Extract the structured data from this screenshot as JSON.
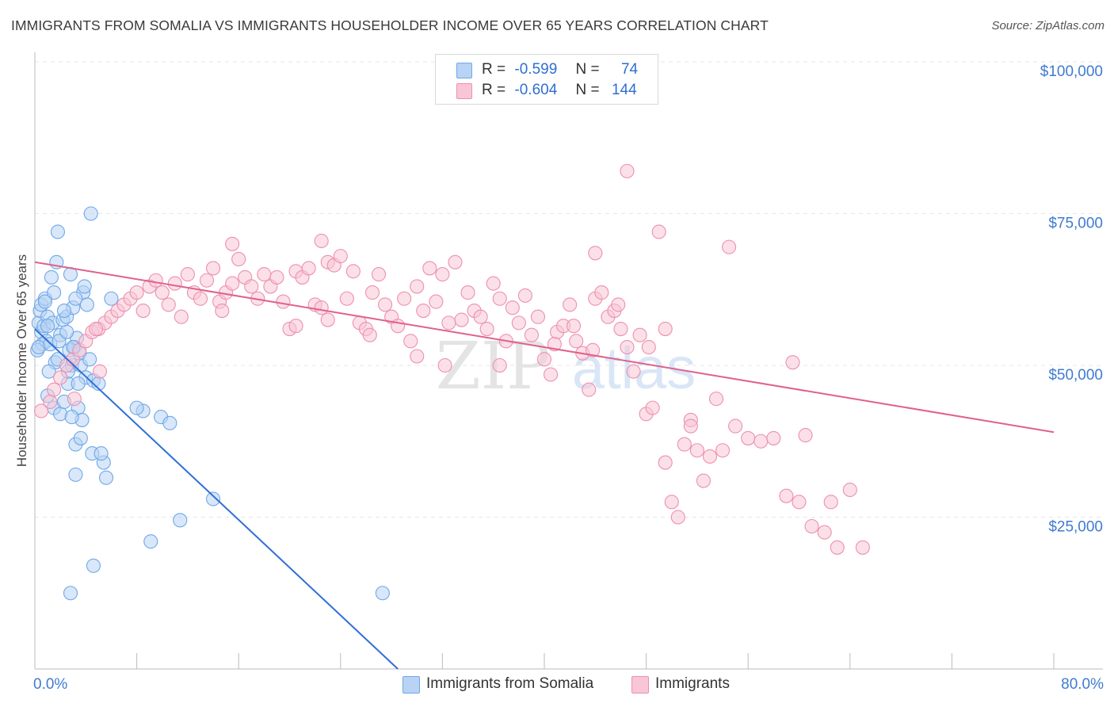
{
  "title": "IMMIGRANTS FROM SOMALIA VS IMMIGRANTS HOUSEHOLDER INCOME OVER 65 YEARS CORRELATION CHART",
  "source": "Source: ZipAtlas.com",
  "watermark": {
    "zip": "ZIP",
    "atlas": "atlas"
  },
  "legend": {
    "r_label": "R =",
    "n_label": "N =",
    "rows": [
      {
        "r": "-0.599",
        "n": "74"
      },
      {
        "r": "-0.604",
        "n": "144"
      }
    ]
  },
  "chart_data": {
    "type": "scatter",
    "xlabel": "",
    "ylabel": "Householder Income Over 65 years",
    "xlim": [
      0,
      80
    ],
    "ylim": [
      0,
      100000
    ],
    "x_tick_labels": {
      "left": "0.0%",
      "right": "80.0%"
    },
    "y_ticks": [
      {
        "value": 25000,
        "label": "$25,000"
      },
      {
        "value": 50000,
        "label": "$50,000"
      },
      {
        "value": 75000,
        "label": "$75,000"
      },
      {
        "value": 100000,
        "label": "$100,000"
      }
    ],
    "grid": true,
    "legend_position": "top-center",
    "series": [
      {
        "name": "Immigrants from Somalia",
        "color": "#6fa8e8",
        "fill": "#b8d3f4",
        "line_color": "#2f6fd6",
        "trend": {
          "x0": 0,
          "y0": 56000,
          "x1": 28.5,
          "y1": 0
        },
        "points": [
          [
            0.3,
            57000
          ],
          [
            0.5,
            55500
          ],
          [
            0.4,
            59000
          ],
          [
            0.6,
            53500
          ],
          [
            0.2,
            52500
          ],
          [
            0.7,
            56500
          ],
          [
            0.9,
            54000
          ],
          [
            0.5,
            60000
          ],
          [
            0.8,
            61000
          ],
          [
            0.3,
            53000
          ],
          [
            1.2,
            53500
          ],
          [
            1.0,
            58000
          ],
          [
            1.4,
            57000
          ],
          [
            1.5,
            62000
          ],
          [
            1.6,
            50500
          ],
          [
            1.8,
            51000
          ],
          [
            2.0,
            55000
          ],
          [
            1.1,
            49000
          ],
          [
            2.2,
            57500
          ],
          [
            2.5,
            58000
          ],
          [
            2.7,
            52500
          ],
          [
            2.9,
            50000
          ],
          [
            3.1,
            53000
          ],
          [
            3.3,
            54500
          ],
          [
            3.6,
            50000
          ],
          [
            3.8,
            62000
          ],
          [
            4.0,
            48000
          ],
          [
            2.6,
            47000
          ],
          [
            3.0,
            59500
          ],
          [
            3.5,
            52000
          ],
          [
            4.3,
            51000
          ],
          [
            4.6,
            47500
          ],
          [
            1.3,
            64500
          ],
          [
            1.7,
            67000
          ],
          [
            1.8,
            72000
          ],
          [
            4.4,
            75000
          ],
          [
            2.8,
            65000
          ],
          [
            3.9,
            63000
          ],
          [
            3.2,
            61000
          ],
          [
            4.1,
            60000
          ],
          [
            1.0,
            45000
          ],
          [
            1.5,
            43000
          ],
          [
            2.0,
            42000
          ],
          [
            2.3,
            44000
          ],
          [
            2.6,
            49000
          ],
          [
            3.4,
            43000
          ],
          [
            3.7,
            41000
          ],
          [
            2.9,
            41500
          ],
          [
            3.2,
            37000
          ],
          [
            3.6,
            38000
          ],
          [
            4.5,
            35500
          ],
          [
            5.4,
            34000
          ],
          [
            5.6,
            31500
          ],
          [
            5.2,
            35500
          ],
          [
            5.0,
            47000
          ],
          [
            6.0,
            61000
          ],
          [
            8.5,
            42500
          ],
          [
            9.9,
            41500
          ],
          [
            10.6,
            40500
          ],
          [
            3.2,
            32000
          ],
          [
            8.0,
            43000
          ],
          [
            11.4,
            24500
          ],
          [
            14.0,
            28000
          ],
          [
            9.1,
            21000
          ],
          [
            4.6,
            17000
          ],
          [
            2.8,
            12500
          ],
          [
            27.3,
            12500
          ],
          [
            1.0,
            56500
          ],
          [
            2.3,
            59000
          ],
          [
            3.0,
            53000
          ],
          [
            1.9,
            54000
          ],
          [
            0.8,
            60500
          ],
          [
            3.4,
            47000
          ],
          [
            2.5,
            55500
          ]
        ]
      },
      {
        "name": "Immigrants",
        "color": "#ee8fb0",
        "fill": "#f8c6d6",
        "line_color": "#e0608c",
        "trend": {
          "x0": 0,
          "y0": 67000,
          "x1": 80,
          "y1": 39000
        },
        "points": [
          [
            0.5,
            42500
          ],
          [
            1.2,
            44000
          ],
          [
            1.5,
            46000
          ],
          [
            2.0,
            48000
          ],
          [
            2.5,
            50000
          ],
          [
            3.0,
            51000
          ],
          [
            3.5,
            52500
          ],
          [
            4.0,
            54000
          ],
          [
            4.5,
            55500
          ],
          [
            5.0,
            56000
          ],
          [
            5.5,
            57000
          ],
          [
            6.0,
            58000
          ],
          [
            6.5,
            59000
          ],
          [
            7.0,
            60000
          ],
          [
            7.5,
            61000
          ],
          [
            8.0,
            62000
          ],
          [
            8.5,
            59000
          ],
          [
            9.0,
            63000
          ],
          [
            9.5,
            64000
          ],
          [
            10.0,
            62000
          ],
          [
            10.5,
            60000
          ],
          [
            11.0,
            63500
          ],
          [
            11.5,
            58000
          ],
          [
            12.0,
            65000
          ],
          [
            12.5,
            62000
          ],
          [
            13.0,
            61000
          ],
          [
            13.5,
            64000
          ],
          [
            14.0,
            66000
          ],
          [
            14.5,
            60500
          ],
          [
            15.0,
            62000
          ],
          [
            15.5,
            70000
          ],
          [
            16.0,
            67500
          ],
          [
            16.5,
            64500
          ],
          [
            17.0,
            63000
          ],
          [
            17.5,
            61000
          ],
          [
            18.0,
            65000
          ],
          [
            18.5,
            63000
          ],
          [
            19.0,
            64500
          ],
          [
            19.5,
            60500
          ],
          [
            20.0,
            56000
          ],
          [
            20.5,
            65500
          ],
          [
            21.0,
            64500
          ],
          [
            21.5,
            66000
          ],
          [
            22.0,
            60000
          ],
          [
            22.5,
            59500
          ],
          [
            23.0,
            67000
          ],
          [
            23.5,
            66500
          ],
          [
            24.0,
            68000
          ],
          [
            24.5,
            61000
          ],
          [
            25.0,
            65500
          ],
          [
            25.5,
            57000
          ],
          [
            26.0,
            56000
          ],
          [
            26.5,
            62000
          ],
          [
            27.0,
            65000
          ],
          [
            27.5,
            60000
          ],
          [
            28.0,
            58000
          ],
          [
            28.5,
            56500
          ],
          [
            29.0,
            61000
          ],
          [
            29.5,
            54000
          ],
          [
            30.0,
            63000
          ],
          [
            30.5,
            59000
          ],
          [
            31.0,
            66000
          ],
          [
            31.5,
            60500
          ],
          [
            32.0,
            65000
          ],
          [
            32.5,
            57000
          ],
          [
            33.0,
            67000
          ],
          [
            33.5,
            57500
          ],
          [
            34.0,
            62000
          ],
          [
            34.5,
            59000
          ],
          [
            35.0,
            58000
          ],
          [
            35.5,
            56000
          ],
          [
            36.0,
            63500
          ],
          [
            36.5,
            61000
          ],
          [
            37.0,
            54000
          ],
          [
            37.5,
            59500
          ],
          [
            38.0,
            57000
          ],
          [
            38.5,
            61500
          ],
          [
            39.0,
            55000
          ],
          [
            39.5,
            58000
          ],
          [
            40.0,
            51000
          ],
          [
            40.5,
            48500
          ],
          [
            41.0,
            55500
          ],
          [
            41.5,
            56500
          ],
          [
            42.0,
            60000
          ],
          [
            42.5,
            54000
          ],
          [
            43.0,
            52000
          ],
          [
            43.5,
            46000
          ],
          [
            44.0,
            61000
          ],
          [
            44.5,
            62000
          ],
          [
            45.0,
            58000
          ],
          [
            45.5,
            59000
          ],
          [
            46.0,
            56000
          ],
          [
            46.5,
            53000
          ],
          [
            47.0,
            49000
          ],
          [
            47.5,
            55000
          ],
          [
            48.0,
            42000
          ],
          [
            48.5,
            43000
          ],
          [
            49.0,
            72000
          ],
          [
            49.5,
            34000
          ],
          [
            50.0,
            27500
          ],
          [
            50.5,
            25000
          ],
          [
            51.0,
            37000
          ],
          [
            51.5,
            41000
          ],
          [
            52.0,
            36000
          ],
          [
            52.5,
            31000
          ],
          [
            53.0,
            35000
          ],
          [
            53.5,
            44500
          ],
          [
            54.0,
            36000
          ],
          [
            55.0,
            40000
          ],
          [
            56.0,
            38000
          ],
          [
            57.0,
            37500
          ],
          [
            58.0,
            38000
          ],
          [
            59.0,
            28500
          ],
          [
            60.0,
            27500
          ],
          [
            61.0,
            23500
          ],
          [
            62.0,
            22500
          ],
          [
            63.0,
            20000
          ],
          [
            65.0,
            20000
          ],
          [
            64.0,
            29500
          ],
          [
            62.5,
            27500
          ],
          [
            60.5,
            38500
          ],
          [
            59.5,
            50500
          ],
          [
            49.5,
            56000
          ],
          [
            54.5,
            69500
          ],
          [
            44.0,
            68500
          ],
          [
            51.5,
            40000
          ],
          [
            46.5,
            82000
          ],
          [
            48.2,
            53000
          ],
          [
            40.8,
            53500
          ],
          [
            42.3,
            56500
          ],
          [
            43.8,
            52500
          ],
          [
            45.8,
            60000
          ],
          [
            36.5,
            50000
          ],
          [
            30.0,
            51500
          ],
          [
            32.2,
            50000
          ],
          [
            26.3,
            55000
          ],
          [
            23.0,
            57500
          ],
          [
            20.5,
            56500
          ],
          [
            22.5,
            70500
          ],
          [
            15.5,
            63500
          ],
          [
            5.1,
            49000
          ],
          [
            3.1,
            44500
          ],
          [
            4.8,
            56000
          ],
          [
            14.7,
            59000
          ]
        ]
      }
    ]
  },
  "bottom_legend": [
    "Immigrants from Somalia",
    "Immigrants"
  ]
}
